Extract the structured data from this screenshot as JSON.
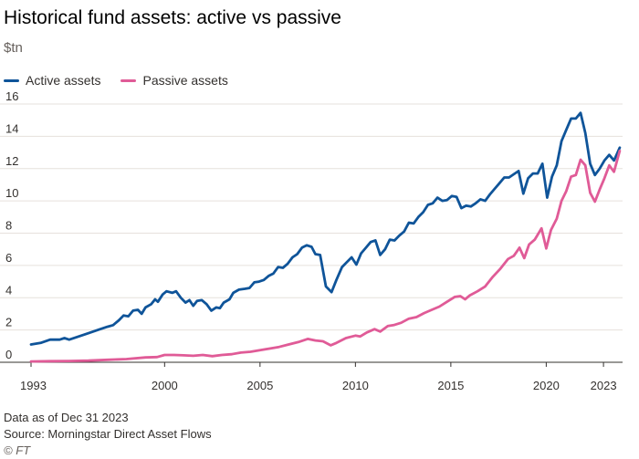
{
  "header": {
    "title": "Historical fund assets: active vs passive",
    "unit": "$tn"
  },
  "legend": [
    {
      "name": "Active assets",
      "color": "#0f5499"
    },
    {
      "name": "Passive assets",
      "color": "#e05b97"
    }
  ],
  "footer": {
    "note": "Data as of Dec 31 2023",
    "source": "Source: Morningstar Direct Asset Flows",
    "copyright": "© FT"
  },
  "chart_data": {
    "type": "line",
    "title": "Historical fund assets: active vs passive",
    "ylabel": "$tn",
    "xlim": [
      1993,
      2024
    ],
    "ylim": [
      0,
      16
    ],
    "yticks": [
      0,
      2,
      4,
      6,
      8,
      10,
      12,
      14,
      16
    ],
    "xticks": [
      {
        "value": 1993,
        "label": "1993"
      },
      {
        "value": 2000,
        "label": "2000"
      },
      {
        "value": 2005,
        "label": "2005"
      },
      {
        "value": 2010,
        "label": "2010"
      },
      {
        "value": 2015,
        "label": "2015"
      },
      {
        "value": 2020,
        "label": "2020"
      },
      {
        "value": 2023,
        "label": "2023"
      }
    ],
    "grid": true,
    "legend_position": "top-left",
    "series": [
      {
        "name": "Active assets",
        "color": "#0f5499",
        "points": [
          [
            1993.0,
            1.1
          ],
          [
            1993.5,
            1.2
          ],
          [
            1994.0,
            1.4
          ],
          [
            1994.5,
            1.4
          ],
          [
            1994.75,
            1.5
          ],
          [
            1995.0,
            1.4
          ],
          [
            1995.5,
            1.6
          ],
          [
            1996.0,
            1.8
          ],
          [
            1996.5,
            2.0
          ],
          [
            1997.0,
            2.2
          ],
          [
            1997.3,
            2.3
          ],
          [
            1997.6,
            2.6
          ],
          [
            1997.85,
            2.9
          ],
          [
            1998.1,
            2.85
          ],
          [
            1998.35,
            3.2
          ],
          [
            1998.6,
            3.25
          ],
          [
            1998.8,
            3.0
          ],
          [
            1999.0,
            3.4
          ],
          [
            1999.3,
            3.6
          ],
          [
            1999.5,
            3.9
          ],
          [
            1999.65,
            3.75
          ],
          [
            1999.9,
            4.2
          ],
          [
            2000.1,
            4.4
          ],
          [
            2000.4,
            4.3
          ],
          [
            2000.6,
            4.4
          ],
          [
            2000.85,
            4.0
          ],
          [
            2001.1,
            3.7
          ],
          [
            2001.3,
            3.85
          ],
          [
            2001.5,
            3.5
          ],
          [
            2001.7,
            3.8
          ],
          [
            2001.95,
            3.85
          ],
          [
            2002.2,
            3.6
          ],
          [
            2002.45,
            3.2
          ],
          [
            2002.7,
            3.4
          ],
          [
            2002.9,
            3.35
          ],
          [
            2003.1,
            3.7
          ],
          [
            2003.4,
            3.9
          ],
          [
            2003.6,
            4.3
          ],
          [
            2003.9,
            4.5
          ],
          [
            2004.2,
            4.55
          ],
          [
            2004.45,
            4.6
          ],
          [
            2004.7,
            4.95
          ],
          [
            2004.95,
            5.0
          ],
          [
            2005.2,
            5.1
          ],
          [
            2005.45,
            5.35
          ],
          [
            2005.7,
            5.5
          ],
          [
            2005.95,
            5.9
          ],
          [
            2006.2,
            5.85
          ],
          [
            2006.45,
            6.1
          ],
          [
            2006.7,
            6.5
          ],
          [
            2006.95,
            6.7
          ],
          [
            2007.2,
            7.1
          ],
          [
            2007.45,
            7.25
          ],
          [
            2007.7,
            7.15
          ],
          [
            2007.9,
            6.7
          ],
          [
            2008.15,
            6.65
          ],
          [
            2008.45,
            4.7
          ],
          [
            2008.75,
            4.35
          ],
          [
            2009.0,
            5.1
          ],
          [
            2009.3,
            5.9
          ],
          [
            2009.55,
            6.2
          ],
          [
            2009.8,
            6.5
          ],
          [
            2010.05,
            6.05
          ],
          [
            2010.3,
            6.75
          ],
          [
            2010.55,
            7.1
          ],
          [
            2010.8,
            7.45
          ],
          [
            2011.05,
            7.55
          ],
          [
            2011.3,
            6.65
          ],
          [
            2011.55,
            7.0
          ],
          [
            2011.8,
            7.6
          ],
          [
            2012.05,
            7.55
          ],
          [
            2012.3,
            7.85
          ],
          [
            2012.55,
            8.1
          ],
          [
            2012.8,
            8.65
          ],
          [
            2013.05,
            8.6
          ],
          [
            2013.3,
            9.0
          ],
          [
            2013.55,
            9.3
          ],
          [
            2013.8,
            9.75
          ],
          [
            2014.05,
            9.85
          ],
          [
            2014.3,
            10.2
          ],
          [
            2014.55,
            10.0
          ],
          [
            2014.8,
            10.05
          ],
          [
            2015.05,
            10.3
          ],
          [
            2015.3,
            10.25
          ],
          [
            2015.55,
            9.55
          ],
          [
            2015.8,
            9.7
          ],
          [
            2016.05,
            9.65
          ],
          [
            2016.3,
            9.85
          ],
          [
            2016.55,
            10.1
          ],
          [
            2016.8,
            10.0
          ],
          [
            2017.05,
            10.4
          ],
          [
            2017.3,
            10.75
          ],
          [
            2017.55,
            11.1
          ],
          [
            2017.8,
            11.45
          ],
          [
            2018.05,
            11.45
          ],
          [
            2018.3,
            11.65
          ],
          [
            2018.55,
            11.85
          ],
          [
            2018.8,
            10.45
          ],
          [
            2019.05,
            11.4
          ],
          [
            2019.3,
            11.7
          ],
          [
            2019.55,
            11.7
          ],
          [
            2019.8,
            12.3
          ],
          [
            2020.05,
            10.2
          ],
          [
            2020.3,
            11.5
          ],
          [
            2020.55,
            12.2
          ],
          [
            2020.8,
            13.7
          ],
          [
            2021.05,
            14.4
          ],
          [
            2021.3,
            15.1
          ],
          [
            2021.55,
            15.1
          ],
          [
            2021.8,
            15.45
          ],
          [
            2022.05,
            14.2
          ],
          [
            2022.3,
            12.3
          ],
          [
            2022.55,
            11.6
          ],
          [
            2022.8,
            12.0
          ],
          [
            2023.05,
            12.5
          ],
          [
            2023.3,
            12.85
          ],
          [
            2023.55,
            12.5
          ],
          [
            2023.85,
            13.3
          ]
        ]
      },
      {
        "name": "Passive assets",
        "color": "#e05b97",
        "points": [
          [
            1993.0,
            0.05
          ],
          [
            1994.0,
            0.07
          ],
          [
            1995.0,
            0.08
          ],
          [
            1996.0,
            0.1
          ],
          [
            1997.0,
            0.15
          ],
          [
            1998.0,
            0.2
          ],
          [
            1999.0,
            0.3
          ],
          [
            1999.6,
            0.32
          ],
          [
            2000.0,
            0.45
          ],
          [
            2000.5,
            0.45
          ],
          [
            2001.0,
            0.43
          ],
          [
            2001.5,
            0.4
          ],
          [
            2002.0,
            0.45
          ],
          [
            2002.5,
            0.38
          ],
          [
            2003.0,
            0.45
          ],
          [
            2003.5,
            0.5
          ],
          [
            2004.0,
            0.6
          ],
          [
            2004.5,
            0.65
          ],
          [
            2005.0,
            0.75
          ],
          [
            2005.5,
            0.85
          ],
          [
            2006.0,
            0.95
          ],
          [
            2006.5,
            1.1
          ],
          [
            2007.0,
            1.25
          ],
          [
            2007.5,
            1.45
          ],
          [
            2007.9,
            1.35
          ],
          [
            2008.3,
            1.3
          ],
          [
            2008.7,
            1.05
          ],
          [
            2009.0,
            1.2
          ],
          [
            2009.5,
            1.5
          ],
          [
            2010.0,
            1.65
          ],
          [
            2010.25,
            1.6
          ],
          [
            2010.6,
            1.85
          ],
          [
            2011.0,
            2.05
          ],
          [
            2011.3,
            1.9
          ],
          [
            2011.7,
            2.25
          ],
          [
            2012.0,
            2.3
          ],
          [
            2012.4,
            2.45
          ],
          [
            2012.8,
            2.7
          ],
          [
            2013.2,
            2.8
          ],
          [
            2013.6,
            3.05
          ],
          [
            2014.0,
            3.25
          ],
          [
            2014.4,
            3.45
          ],
          [
            2014.8,
            3.75
          ],
          [
            2015.2,
            4.05
          ],
          [
            2015.5,
            4.1
          ],
          [
            2015.75,
            3.9
          ],
          [
            2016.0,
            4.15
          ],
          [
            2016.4,
            4.4
          ],
          [
            2016.8,
            4.7
          ],
          [
            2017.2,
            5.3
          ],
          [
            2017.6,
            5.8
          ],
          [
            2018.0,
            6.4
          ],
          [
            2018.3,
            6.6
          ],
          [
            2018.6,
            7.1
          ],
          [
            2018.85,
            6.45
          ],
          [
            2019.1,
            7.3
          ],
          [
            2019.4,
            7.6
          ],
          [
            2019.75,
            8.3
          ],
          [
            2020.0,
            7.05
          ],
          [
            2020.25,
            8.2
          ],
          [
            2020.55,
            8.9
          ],
          [
            2020.8,
            10.0
          ],
          [
            2021.05,
            10.6
          ],
          [
            2021.3,
            11.5
          ],
          [
            2021.55,
            11.6
          ],
          [
            2021.8,
            12.55
          ],
          [
            2022.05,
            12.2
          ],
          [
            2022.3,
            10.5
          ],
          [
            2022.55,
            9.95
          ],
          [
            2022.8,
            10.7
          ],
          [
            2023.05,
            11.4
          ],
          [
            2023.3,
            12.2
          ],
          [
            2023.55,
            11.8
          ],
          [
            2023.85,
            13.1
          ]
        ]
      }
    ]
  }
}
